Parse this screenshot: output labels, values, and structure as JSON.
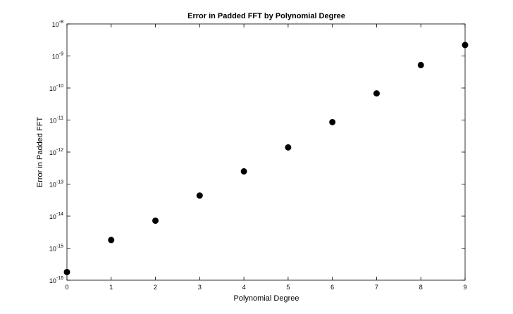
{
  "chart_data": {
    "type": "scatter",
    "title": "Error in Padded FFT by Polynomial Degree",
    "xlabel": "Polynomial Degree",
    "ylabel": "Error in Padded FFT",
    "xlim": [
      0,
      9
    ],
    "xticks": [
      0,
      1,
      2,
      3,
      4,
      5,
      6,
      7,
      8,
      9
    ],
    "y_scale": "log",
    "ylim": [
      1e-16,
      1e-08
    ],
    "y_tick_exponents": [
      -16,
      -15,
      -14,
      -13,
      -12,
      -11,
      -10,
      -9,
      -8
    ],
    "grid": false,
    "legend": "none",
    "marker_color": "#000000",
    "x": [
      0,
      1,
      2,
      3,
      4,
      5,
      6,
      7,
      8,
      9
    ],
    "y": [
      1.8e-16,
      1.8e-15,
      7.2e-15,
      4.4e-14,
      2.5e-13,
      1.4e-12,
      8.6e-12,
      6.8e-11,
      5.2e-10,
      2.2e-09
    ]
  }
}
